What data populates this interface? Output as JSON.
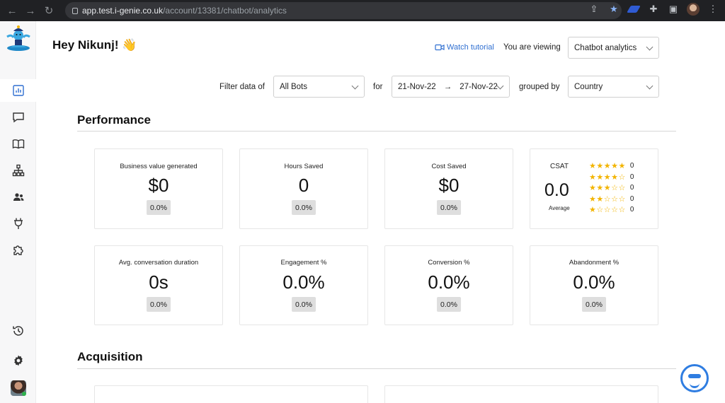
{
  "browser": {
    "url_host": "app.test.i-genie.co.uk",
    "url_path": "/account/13381/chatbot/analytics"
  },
  "header": {
    "greeting": "Hey Nikunj!",
    "greeting_emoji": "👋",
    "watch_tutorial": "Watch tutorial",
    "viewing_label": "You are viewing",
    "viewing_value": "Chatbot analytics"
  },
  "filters": {
    "filter_label": "Filter data of",
    "bots_value": "All Bots",
    "for_label": "for",
    "date_from": "21-Nov-22",
    "date_arrow": "→",
    "date_to": "27-Nov-22",
    "grouped_label": "grouped by",
    "group_value": "Country"
  },
  "performance": {
    "title": "Performance",
    "cards": [
      {
        "title": "Business value generated",
        "value": "$0",
        "change": "0.0%"
      },
      {
        "title": "Hours Saved",
        "value": "0",
        "change": "0.0%"
      },
      {
        "title": "Cost Saved",
        "value": "$0",
        "change": "0.0%"
      }
    ],
    "csat": {
      "title": "CSAT",
      "value": "0.0",
      "sub": "Average",
      "rows": [
        {
          "filled": "★★★★★",
          "empty": "",
          "count": "0"
        },
        {
          "filled": "★★★★",
          "empty": "☆",
          "count": "0"
        },
        {
          "filled": "★★★",
          "empty": "☆☆",
          "count": "0"
        },
        {
          "filled": "★★",
          "empty": "☆☆☆",
          "count": "0"
        },
        {
          "filled": "★",
          "empty": "☆☆☆☆",
          "count": "0"
        }
      ]
    },
    "cards2": [
      {
        "title": "Avg. conversation duration",
        "value": "0s",
        "change": "0.0%"
      },
      {
        "title": "Engagement %",
        "value": "0.0%",
        "change": "0.0%"
      },
      {
        "title": "Conversion %",
        "value": "0.0%",
        "change": "0.0%"
      },
      {
        "title": "Abandonment %",
        "value": "0.0%",
        "change": "0.0%"
      }
    ]
  },
  "acquisition": {
    "title": "Acquisition"
  },
  "sidebar": {
    "items": [
      "analytics-icon",
      "chat-icon",
      "book-icon",
      "org-chart-icon",
      "users-icon",
      "plug-icon",
      "puzzle-icon",
      "history-icon",
      "gear-icon"
    ]
  },
  "colors": {
    "accent_blue": "#2f6fd1",
    "star_gold": "#f2b400",
    "badge_bg": "#dedede"
  }
}
